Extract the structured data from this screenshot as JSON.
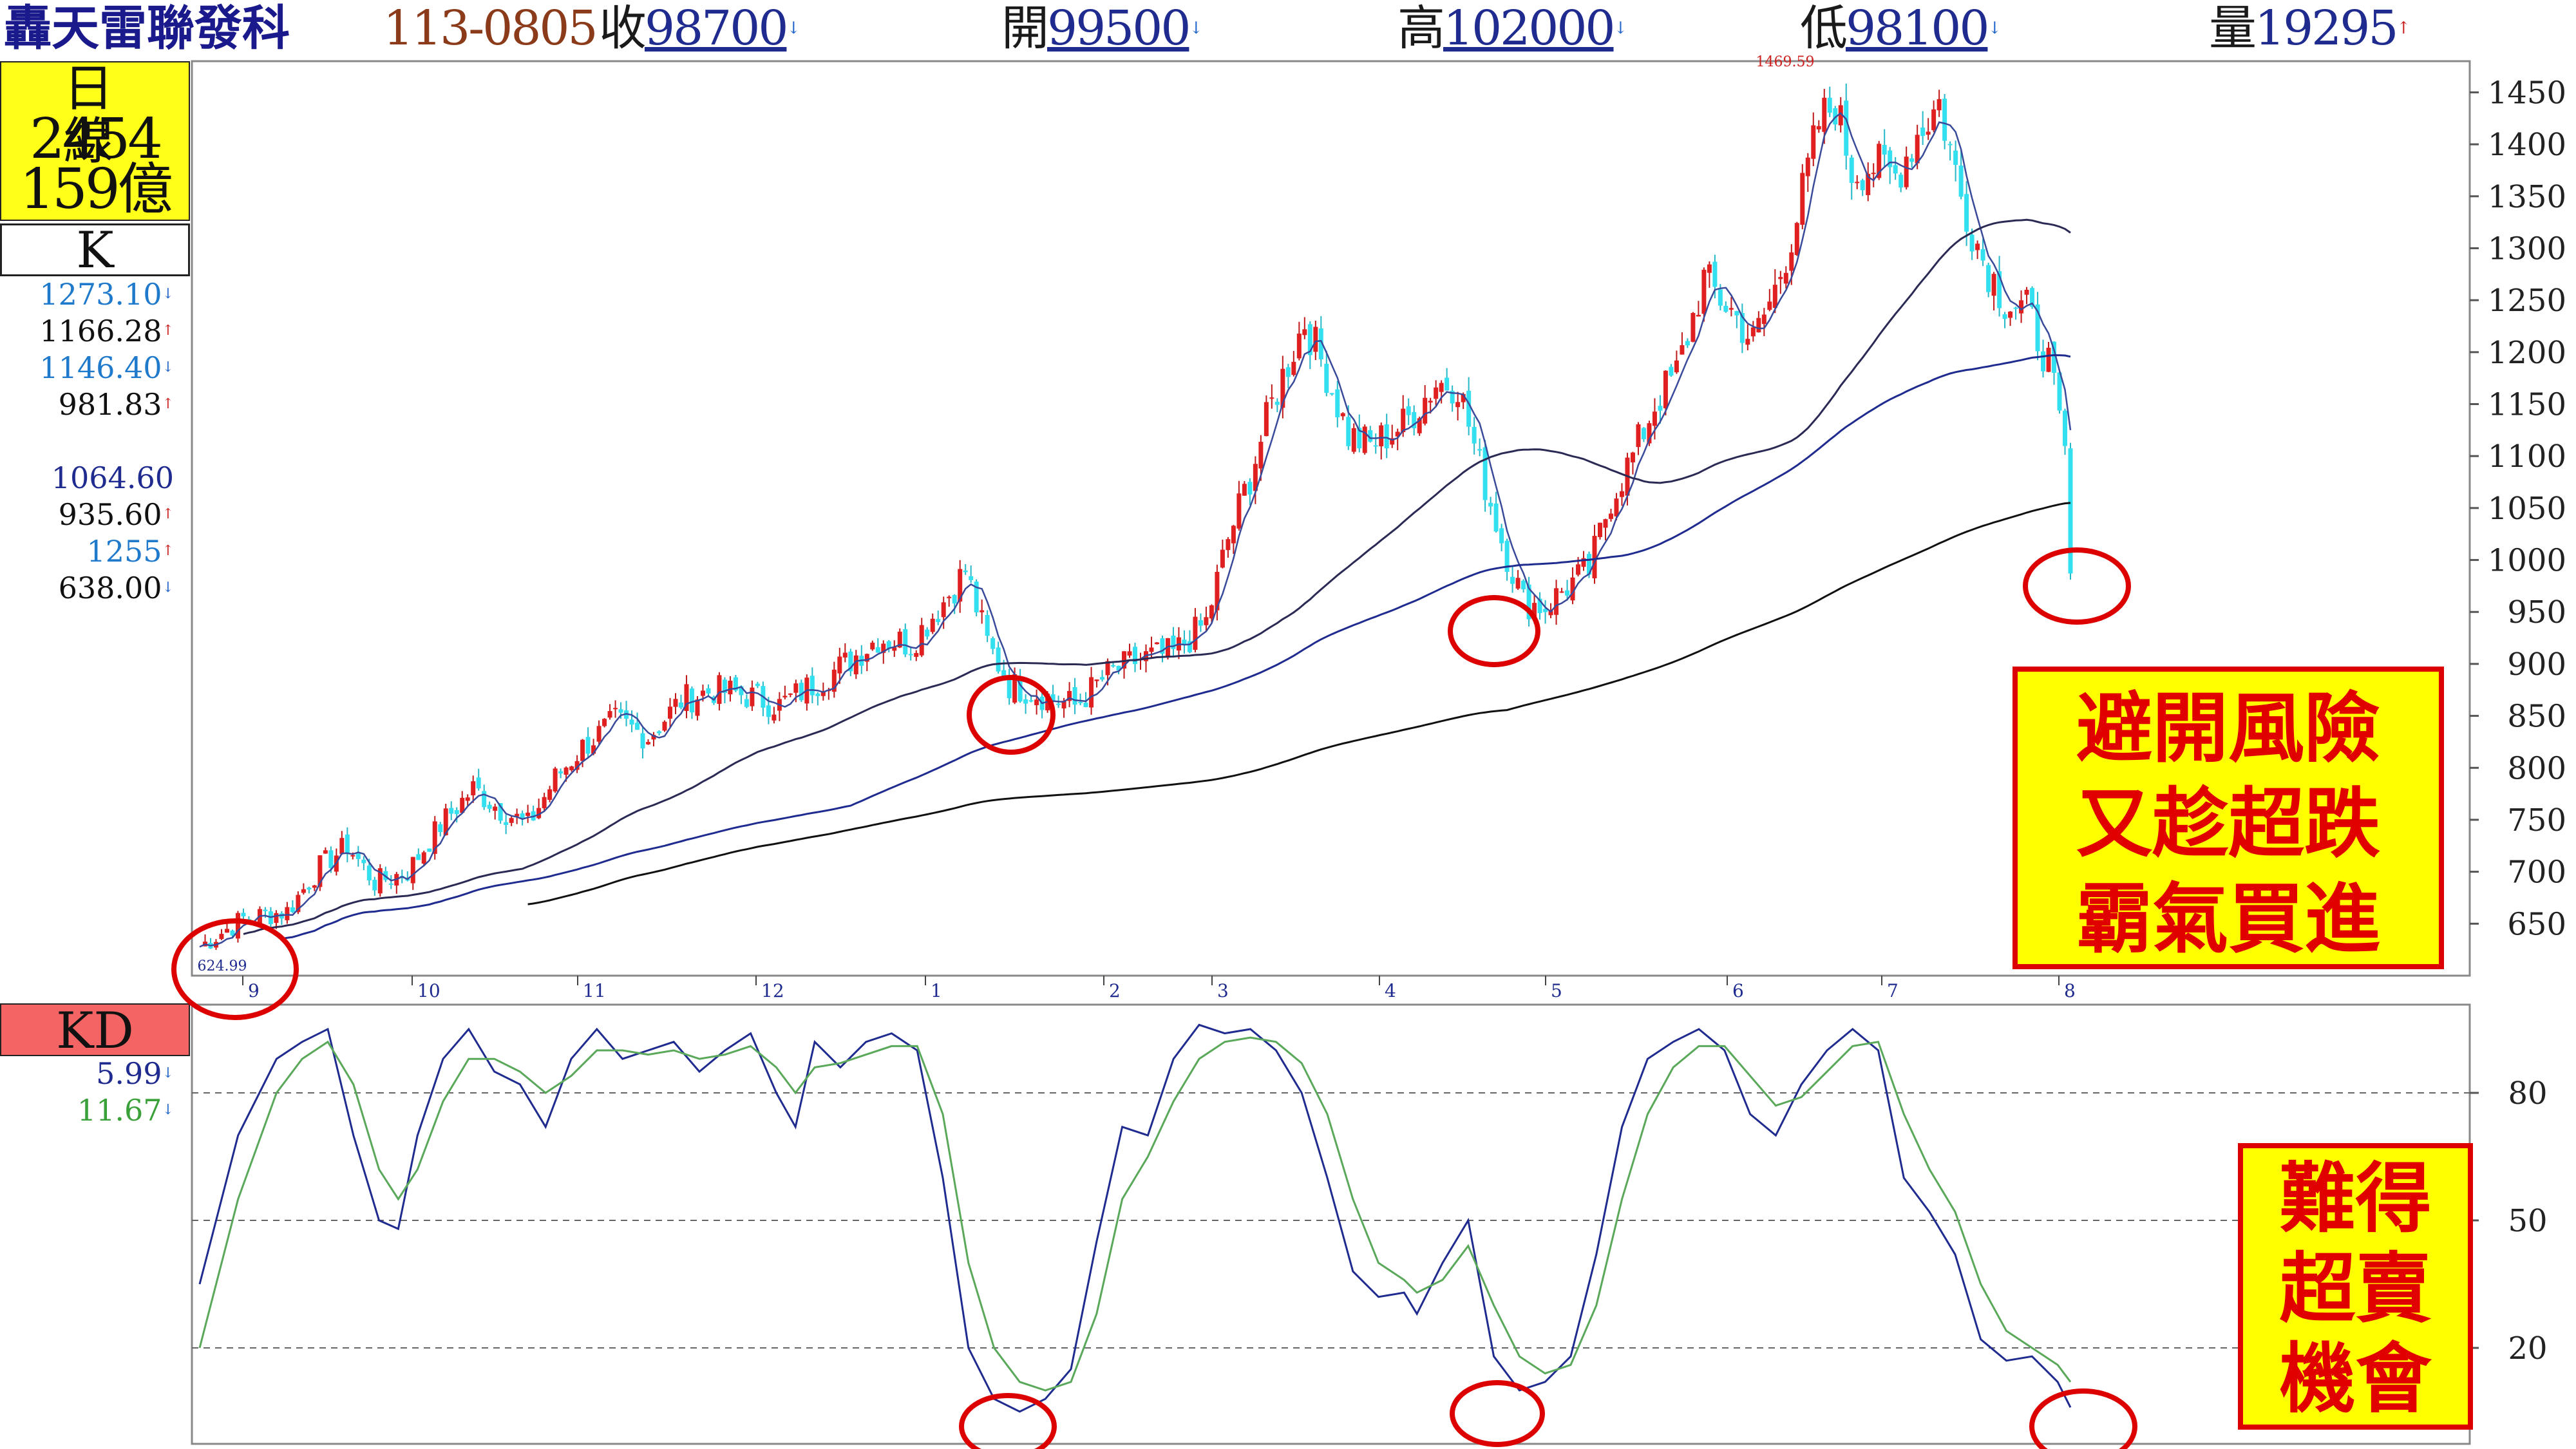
{
  "header": {
    "stock_name": "轟天雷聯發科",
    "date": "113-0805",
    "close_label": "收",
    "close_value": "98700",
    "open_label": "開",
    "open_value": "99500",
    "high_label": "高",
    "high_value": "102000",
    "low_label": "低",
    "low_value": "98100",
    "volume_label": "量",
    "volume_value": "19295"
  },
  "info_box": {
    "period": "日線",
    "stock_code": "2454",
    "turnover": "159億"
  },
  "k_label": "K",
  "kd_label": "KD",
  "price_values": [
    {
      "text": "1273.10",
      "color": "#1f7acc",
      "arrow": "down"
    },
    {
      "text": "1166.28",
      "color": "#111111",
      "arrow": "up"
    },
    {
      "text": "1146.40",
      "color": "#1f7acc",
      "arrow": "down"
    },
    {
      "text": "981.83",
      "color": "#111111",
      "arrow": "up"
    },
    {
      "text": "1064.60",
      "color": "#1f2b8f",
      "arrow": ""
    },
    {
      "text": "935.60",
      "color": "#111111",
      "arrow": "up"
    },
    {
      "text": "1255",
      "color": "#1f7acc",
      "arrow": "up"
    },
    {
      "text": "638.00",
      "color": "#111111",
      "arrow": "down"
    }
  ],
  "kd_values": [
    {
      "text": "5.99",
      "color": "#1f2b8f",
      "arrow": "down"
    },
    {
      "text": "11.67",
      "color": "#3aa03a",
      "arrow": "down"
    }
  ],
  "annotations": {
    "box1": [
      "避開風險",
      "又趁超跌",
      "霸氣買進"
    ],
    "box2": [
      "難得",
      "超賣",
      "機會"
    ],
    "high_marker": "1469.59",
    "low_marker": "624.99"
  },
  "chart_data": [
    {
      "type": "candlestick",
      "title": "",
      "x_month_labels": [
        "9",
        "10",
        "11",
        "12",
        "1",
        "2",
        "3",
        "4",
        "5",
        "6",
        "7",
        "8"
      ],
      "ylim": [
        600,
        1480
      ],
      "y_ticks": [
        650,
        700,
        750,
        800,
        850,
        900,
        950,
        1000,
        1050,
        1100,
        1150,
        1200,
        1250,
        1300,
        1350,
        1400,
        1450
      ],
      "close_anchors": [
        [
          0,
          628
        ],
        [
          8,
          655
        ],
        [
          16,
          662
        ],
        [
          22,
          705
        ],
        [
          27,
          725
        ],
        [
          32,
          690
        ],
        [
          38,
          700
        ],
        [
          44,
          745
        ],
        [
          50,
          780
        ],
        [
          55,
          760
        ],
        [
          60,
          745
        ],
        [
          65,
          790
        ],
        [
          70,
          820
        ],
        [
          76,
          845
        ],
        [
          82,
          830
        ],
        [
          88,
          865
        ],
        [
          94,
          875
        ],
        [
          100,
          870
        ],
        [
          106,
          860
        ],
        [
          112,
          880
        ],
        [
          118,
          900
        ],
        [
          124,
          925
        ],
        [
          130,
          920
        ],
        [
          136,
          960
        ],
        [
          140,
          990
        ],
        [
          144,
          920
        ],
        [
          148,
          880
        ],
        [
          154,
          870
        ],
        [
          160,
          860
        ],
        [
          166,
          890
        ],
        [
          172,
          905
        ],
        [
          178,
          910
        ],
        [
          184,
          940
        ],
        [
          188,
          1020
        ],
        [
          192,
          1080
        ],
        [
          196,
          1150
        ],
        [
          199,
          1190
        ],
        [
          202,
          1230
        ],
        [
          206,
          1180
        ],
        [
          210,
          1120
        ],
        [
          214,
          1110
        ],
        [
          220,
          1130
        ],
        [
          226,
          1170
        ],
        [
          230,
          1170
        ],
        [
          234,
          1090
        ],
        [
          238,
          1020
        ],
        [
          242,
          960
        ],
        [
          246,
          955
        ],
        [
          250,
          975
        ],
        [
          254,
          990
        ],
        [
          258,
          1060
        ],
        [
          262,
          1100
        ],
        [
          266,
          1150
        ],
        [
          270,
          1180
        ],
        [
          275,
          1270
        ],
        [
          280,
          1240
        ],
        [
          284,
          1210
        ],
        [
          288,
          1260
        ],
        [
          292,
          1330
        ],
        [
          296,
          1420
        ],
        [
          299,
          1440
        ],
        [
          302,
          1375
        ],
        [
          306,
          1380
        ],
        [
          310,
          1370
        ],
        [
          314,
          1410
        ],
        [
          318,
          1440
        ],
        [
          322,
          1350
        ],
        [
          326,
          1290
        ],
        [
          330,
          1250
        ],
        [
          334,
          1240
        ],
        [
          338,
          1190
        ],
        [
          341,
          1100
        ],
        [
          342,
          987
        ]
      ],
      "moving_averages": [
        {
          "period": 5,
          "color": "#3a4a9a"
        },
        {
          "period": 60,
          "color": "#2a2a55"
        },
        {
          "period": 120,
          "color": "#1f2b8f"
        },
        {
          "period": 240,
          "color": "#111111"
        }
      ],
      "up_color": "#e02020",
      "down_color": "#33e0f0"
    },
    {
      "type": "line",
      "title": "",
      "ylim": [
        0,
        100
      ],
      "y_ticks": [
        20,
        50,
        80
      ],
      "series": [
        {
          "color": "#1f2b8f",
          "anchors": [
            [
              0,
              35
            ],
            [
              6,
              70
            ],
            [
              12,
              88
            ],
            [
              16,
              92
            ],
            [
              20,
              95
            ],
            [
              24,
              70
            ],
            [
              28,
              50
            ],
            [
              31,
              48
            ],
            [
              34,
              70
            ],
            [
              38,
              88
            ],
            [
              42,
              95
            ],
            [
              46,
              85
            ],
            [
              50,
              82
            ],
            [
              54,
              72
            ],
            [
              58,
              88
            ],
            [
              62,
              95
            ],
            [
              66,
              88
            ],
            [
              70,
              90
            ],
            [
              74,
              92
            ],
            [
              78,
              85
            ],
            [
              82,
              90
            ],
            [
              86,
              94
            ],
            [
              90,
              80
            ],
            [
              93,
              72
            ],
            [
              96,
              92
            ],
            [
              100,
              86
            ],
            [
              104,
              92
            ],
            [
              108,
              94
            ],
            [
              112,
              90
            ],
            [
              116,
              60
            ],
            [
              120,
              20
            ],
            [
              124,
              8
            ],
            [
              128,
              5
            ],
            [
              132,
              8
            ],
            [
              136,
              15
            ],
            [
              140,
              45
            ],
            [
              144,
              72
            ],
            [
              148,
              70
            ],
            [
              152,
              88
            ],
            [
              156,
              96
            ],
            [
              160,
              94
            ],
            [
              164,
              95
            ],
            [
              168,
              90
            ],
            [
              172,
              80
            ],
            [
              176,
              60
            ],
            [
              180,
              38
            ],
            [
              184,
              32
            ],
            [
              188,
              33
            ],
            [
              190,
              28
            ],
            [
              194,
              40
            ],
            [
              198,
              50
            ],
            [
              202,
              18
            ],
            [
              206,
              10
            ],
            [
              210,
              12
            ],
            [
              214,
              18
            ],
            [
              218,
              42
            ],
            [
              222,
              72
            ],
            [
              226,
              88
            ],
            [
              230,
              92
            ],
            [
              234,
              95
            ],
            [
              238,
              90
            ],
            [
              242,
              75
            ],
            [
              246,
              70
            ],
            [
              250,
              82
            ],
            [
              254,
              90
            ],
            [
              258,
              95
            ],
            [
              262,
              90
            ],
            [
              266,
              60
            ],
            [
              270,
              52
            ],
            [
              274,
              42
            ],
            [
              278,
              22
            ],
            [
              282,
              17
            ],
            [
              286,
              18
            ],
            [
              290,
              12
            ],
            [
              292,
              6
            ]
          ]
        },
        {
          "color": "#5aa85a",
          "anchors": [
            [
              0,
              20
            ],
            [
              6,
              55
            ],
            [
              12,
              80
            ],
            [
              16,
              88
            ],
            [
              20,
              92
            ],
            [
              24,
              82
            ],
            [
              28,
              62
            ],
            [
              31,
              55
            ],
            [
              34,
              62
            ],
            [
              38,
              78
            ],
            [
              42,
              88
            ],
            [
              46,
              88
            ],
            [
              50,
              85
            ],
            [
              54,
              80
            ],
            [
              58,
              84
            ],
            [
              62,
              90
            ],
            [
              66,
              90
            ],
            [
              70,
              89
            ],
            [
              74,
              90
            ],
            [
              78,
              88
            ],
            [
              82,
              89
            ],
            [
              86,
              91
            ],
            [
              90,
              86
            ],
            [
              93,
              80
            ],
            [
              96,
              86
            ],
            [
              100,
              87
            ],
            [
              104,
              89
            ],
            [
              108,
              91
            ],
            [
              112,
              91
            ],
            [
              116,
              75
            ],
            [
              120,
              40
            ],
            [
              124,
              20
            ],
            [
              128,
              12
            ],
            [
              132,
              10
            ],
            [
              136,
              12
            ],
            [
              140,
              28
            ],
            [
              144,
              55
            ],
            [
              148,
              65
            ],
            [
              152,
              78
            ],
            [
              156,
              88
            ],
            [
              160,
              92
            ],
            [
              164,
              93
            ],
            [
              168,
              92
            ],
            [
              172,
              87
            ],
            [
              176,
              75
            ],
            [
              180,
              55
            ],
            [
              184,
              40
            ],
            [
              188,
              36
            ],
            [
              190,
              33
            ],
            [
              194,
              36
            ],
            [
              198,
              44
            ],
            [
              202,
              30
            ],
            [
              206,
              18
            ],
            [
              210,
              14
            ],
            [
              214,
              16
            ],
            [
              218,
              30
            ],
            [
              222,
              55
            ],
            [
              226,
              75
            ],
            [
              230,
              86
            ],
            [
              234,
              91
            ],
            [
              238,
              91
            ],
            [
              242,
              84
            ],
            [
              246,
              77
            ],
            [
              250,
              79
            ],
            [
              254,
              85
            ],
            [
              258,
              91
            ],
            [
              262,
              92
            ],
            [
              266,
              75
            ],
            [
              270,
              62
            ],
            [
              274,
              52
            ],
            [
              278,
              35
            ],
            [
              282,
              24
            ],
            [
              286,
              20
            ],
            [
              290,
              16
            ],
            [
              292,
              12
            ]
          ]
        }
      ]
    }
  ]
}
